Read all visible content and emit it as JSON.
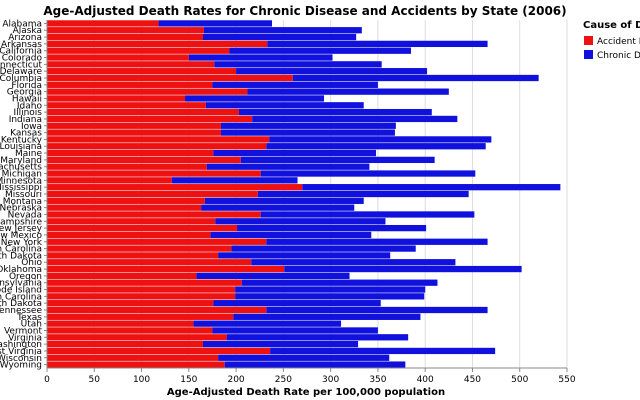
{
  "chart_data": {
    "type": "bar",
    "orientation": "horizontal",
    "stacked": true,
    "title": "Age-Adjusted Death Rates for Chronic Disease and Accidents by State (2006)",
    "xlabel": "Age-Adjusted Death Rate per 100,000 population",
    "ylabel": "",
    "xlim": [
      0,
      550
    ],
    "xticks": [
      0,
      50,
      100,
      150,
      200,
      250,
      300,
      350,
      400,
      450,
      500,
      550
    ],
    "grid": true,
    "legend": {
      "title": "Cause of Death",
      "position": "right",
      "entries": [
        "Accident Deaths",
        "Chronic Disease"
      ]
    },
    "colors": {
      "Accident Deaths": "#ee1111",
      "Chronic Disease": "#1111dd"
    },
    "categories": [
      "Alabama",
      "Alaska",
      "Arizona",
      "Arkansas",
      "California",
      "Colorado",
      "Connecticut",
      "Delaware",
      "Columbia",
      "Florida",
      "Georgia",
      "Hawaii",
      "Idaho",
      "Illinois",
      "Indiana",
      "Iowa",
      "Kansas",
      "Kentucky",
      "Louisiana",
      "Maine",
      "Maryland",
      "Massachusetts",
      "Michigan",
      "Minnesota",
      "Mississippi",
      "Missouri",
      "Montana",
      "Nebraska",
      "Nevada",
      "New Hampshire",
      "New Jersey",
      "New Mexico",
      "New York",
      "North Carolina",
      "North Dakota",
      "Ohio",
      "Oklahoma",
      "Oregon",
      "Pennsylvania",
      "Rhode Island",
      "South Carolina",
      "South Dakota",
      "Tennessee",
      "Texas",
      "Utah",
      "Vermont",
      "Virginia",
      "Washington",
      "West Virginia",
      "Wisconsin",
      "Wyoming"
    ],
    "series": [
      {
        "name": "Accident Deaths",
        "values": [
          118,
          166,
          165,
          233,
          193,
          150,
          177,
          200,
          260,
          175,
          212,
          146,
          168,
          203,
          217,
          184,
          184,
          235,
          232,
          176,
          205,
          169,
          226,
          132,
          270,
          223,
          167,
          163,
          226,
          178,
          201,
          173,
          232,
          195,
          181,
          216,
          251,
          158,
          206,
          199,
          199,
          176,
          232,
          197,
          155,
          175,
          190,
          165,
          236,
          181,
          188
        ]
      },
      {
        "name": "Chronic Disease",
        "values": [
          120,
          167,
          162,
          233,
          192,
          152,
          177,
          202,
          260,
          175,
          213,
          147,
          167,
          204,
          217,
          185,
          184,
          235,
          232,
          172,
          205,
          172,
          227,
          133,
          273,
          223,
          168,
          162,
          226,
          180,
          200,
          170,
          234,
          195,
          182,
          216,
          251,
          162,
          207,
          201,
          200,
          177,
          234,
          198,
          156,
          175,
          192,
          164,
          238,
          181,
          191
        ]
      }
    ]
  }
}
